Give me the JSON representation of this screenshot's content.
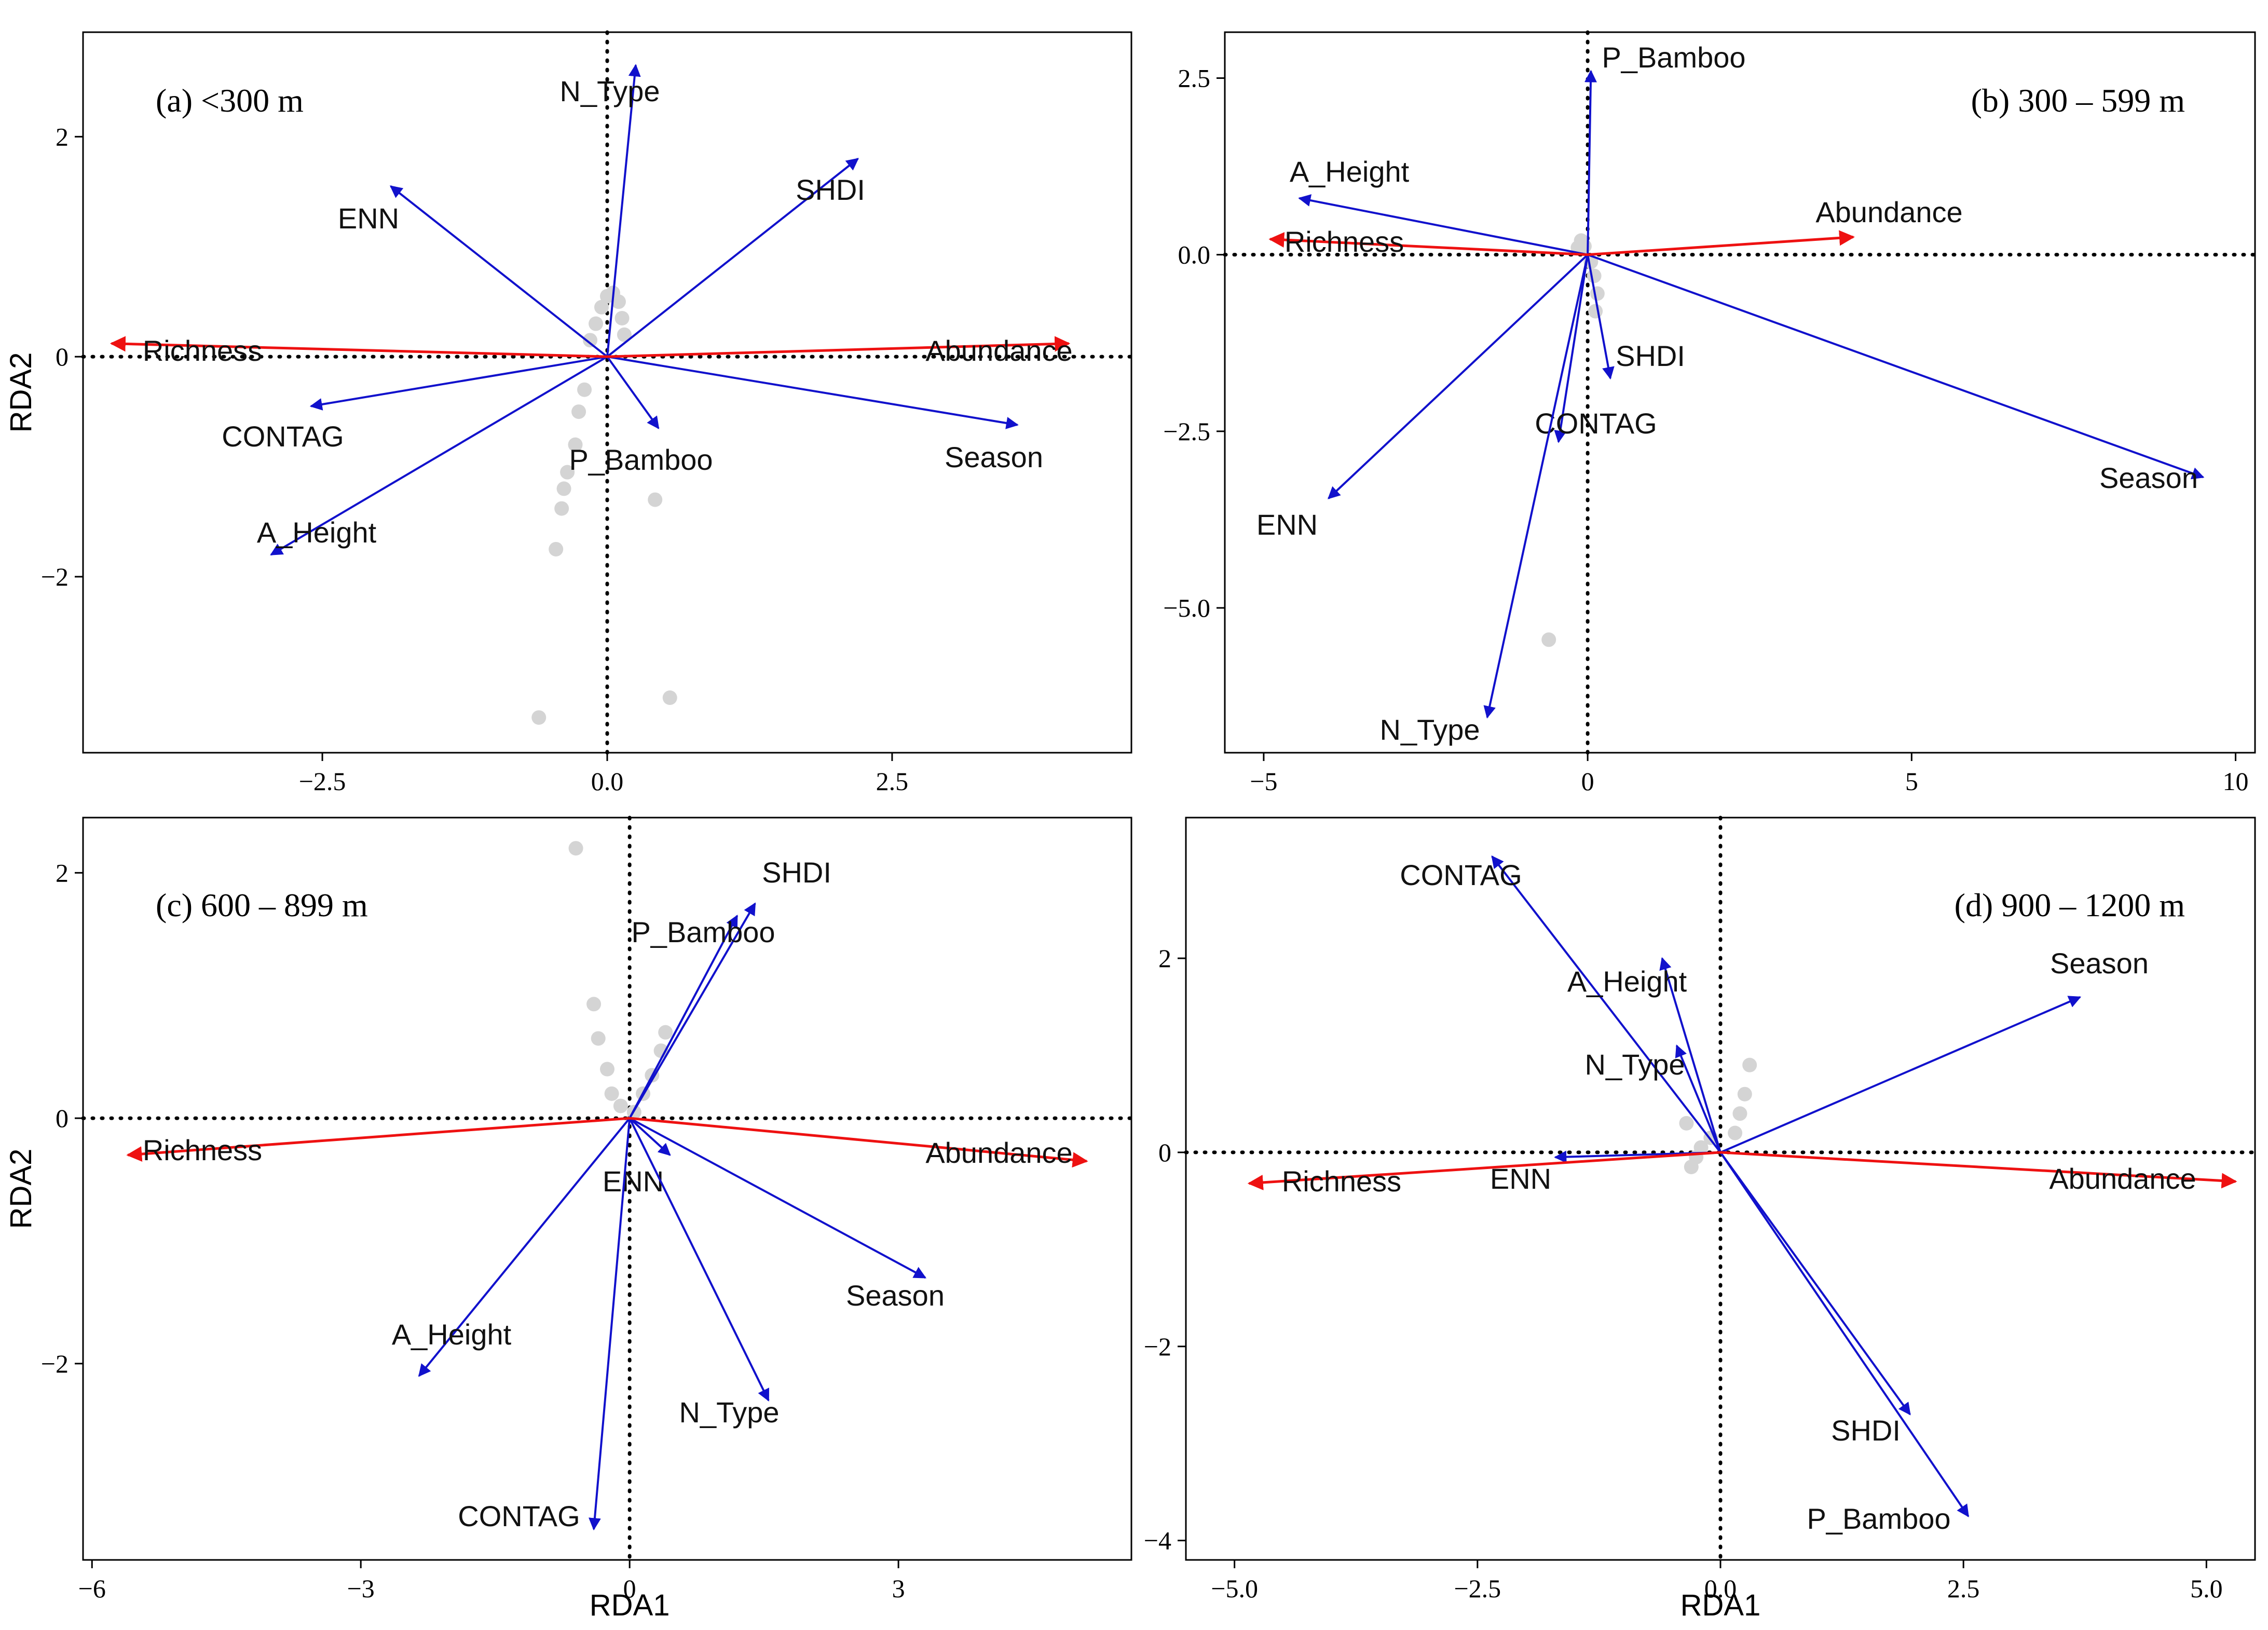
{
  "chart_data": [
    {
      "type": "scatter",
      "title": "(a) <300 m",
      "xlabel": "",
      "ylabel": "RDA2",
      "xlim": [
        -4.6,
        4.6
      ],
      "ylim": [
        -3.6,
        2.95
      ],
      "xticks": [
        -2.5,
        0,
        2.5
      ],
      "xtick_labels": [
        "−2.5",
        "0.0",
        "2.5"
      ],
      "yticks": [
        -2,
        0,
        2
      ],
      "ytick_labels": [
        "−2",
        "0",
        "2"
      ],
      "species": [
        {
          "name": "Richness",
          "x": -4.35,
          "y": 0.12
        },
        {
          "name": "Abundance",
          "x": 4.05,
          "y": 0.12
        }
      ],
      "variables": [
        {
          "name": "N_Type",
          "x": 0.25,
          "y": 2.65
        },
        {
          "name": "SHDI",
          "x": 2.2,
          "y": 1.8
        },
        {
          "name": "ENN",
          "x": -1.9,
          "y": 1.55
        },
        {
          "name": "CONTAG",
          "x": -2.6,
          "y": -0.45
        },
        {
          "name": "P_Bamboo",
          "x": 0.45,
          "y": -0.65
        },
        {
          "name": "Season",
          "x": 3.6,
          "y": -0.62
        },
        {
          "name": "A_Height",
          "x": -2.95,
          "y": -1.8
        }
      ],
      "sites": [
        {
          "x": -0.1,
          "y": 0.3
        },
        {
          "x": -0.05,
          "y": 0.45
        },
        {
          "x": 0.0,
          "y": 0.55
        },
        {
          "x": 0.05,
          "y": 0.58
        },
        {
          "x": 0.1,
          "y": 0.5
        },
        {
          "x": 0.13,
          "y": 0.35
        },
        {
          "x": 0.15,
          "y": 0.2
        },
        {
          "x": -0.15,
          "y": 0.15
        },
        {
          "x": -0.2,
          "y": -0.3
        },
        {
          "x": -0.25,
          "y": -0.5
        },
        {
          "x": -0.28,
          "y": -0.8
        },
        {
          "x": -0.35,
          "y": -1.05
        },
        {
          "x": -0.38,
          "y": -1.2
        },
        {
          "x": -0.4,
          "y": -1.38
        },
        {
          "x": -0.45,
          "y": -1.75
        },
        {
          "x": 0.42,
          "y": -1.3
        },
        {
          "x": -0.6,
          "y": -3.28
        },
        {
          "x": 0.55,
          "y": -3.1
        }
      ]
    },
    {
      "type": "scatter",
      "title": "(b) 300 – 599 m",
      "xlabel": "",
      "ylabel": "",
      "xlim": [
        -5.6,
        10.3
      ],
      "ylim": [
        -7.05,
        3.15
      ],
      "xticks": [
        -5,
        0,
        5,
        10
      ],
      "xtick_labels": [
        "−5",
        "0",
        "5",
        "10"
      ],
      "yticks": [
        2.5,
        0,
        -2.5,
        -5
      ],
      "ytick_labels": [
        "2.5",
        "0.0",
        "−2.5",
        "−5.0"
      ],
      "species": [
        {
          "name": "Richness",
          "x": -4.9,
          "y": 0.22
        },
        {
          "name": "Abundance",
          "x": 4.1,
          "y": 0.25
        }
      ],
      "variables": [
        {
          "name": "P_Bamboo",
          "x": 0.05,
          "y": 2.6
        },
        {
          "name": "A_Height",
          "x": -4.45,
          "y": 0.8
        },
        {
          "name": "SHDI",
          "x": 0.35,
          "y": -1.75
        },
        {
          "name": "CONTAG",
          "x": -0.45,
          "y": -2.65
        },
        {
          "name": "ENN",
          "x": -4.0,
          "y": -3.45
        },
        {
          "name": "Season",
          "x": 9.5,
          "y": -3.15
        },
        {
          "name": "N_Type",
          "x": -1.55,
          "y": -6.55
        }
      ],
      "sites": [
        {
          "x": -0.15,
          "y": 0.1
        },
        {
          "x": -0.1,
          "y": 0.2
        },
        {
          "x": -0.05,
          "y": 0.12
        },
        {
          "x": 0.05,
          "y": -0.1
        },
        {
          "x": 0.1,
          "y": -0.3
        },
        {
          "x": 0.15,
          "y": -0.55
        },
        {
          "x": 0.12,
          "y": -0.8
        },
        {
          "x": -0.6,
          "y": -5.45
        }
      ]
    },
    {
      "type": "scatter",
      "title": "(c) 600 – 899 m",
      "xlabel": "RDA1",
      "ylabel": "RDA2",
      "xlim": [
        -6.1,
        5.6
      ],
      "ylim": [
        -3.6,
        2.45
      ],
      "xticks": [
        -6,
        -3,
        0,
        3
      ],
      "xtick_labels": [
        "−6",
        "−3",
        "0",
        "3"
      ],
      "yticks": [
        2,
        0,
        -2
      ],
      "ytick_labels": [
        "2",
        "0",
        "−2"
      ],
      "species": [
        {
          "name": "Richness",
          "x": -5.6,
          "y": -0.3
        },
        {
          "name": "Abundance",
          "x": 5.1,
          "y": -0.35
        }
      ],
      "variables": [
        {
          "name": "SHDI",
          "x": 1.4,
          "y": 1.75
        },
        {
          "name": "P_Bamboo",
          "x": 1.2,
          "y": 1.65
        },
        {
          "name": "ENN",
          "x": 0.45,
          "y": -0.3
        },
        {
          "name": "Season",
          "x": 3.3,
          "y": -1.3
        },
        {
          "name": "A_Height",
          "x": -2.35,
          "y": -2.1
        },
        {
          "name": "N_Type",
          "x": 1.55,
          "y": -2.3
        },
        {
          "name": "CONTAG",
          "x": -0.4,
          "y": -3.35
        }
      ],
      "sites": [
        {
          "x": -0.6,
          "y": 2.2
        },
        {
          "x": -0.4,
          "y": 0.93
        },
        {
          "x": -0.35,
          "y": 0.65
        },
        {
          "x": -0.25,
          "y": 0.4
        },
        {
          "x": -0.2,
          "y": 0.2
        },
        {
          "x": -0.1,
          "y": 0.1
        },
        {
          "x": 0.05,
          "y": 0.05
        },
        {
          "x": 0.15,
          "y": 0.2
        },
        {
          "x": 0.25,
          "y": 0.35
        },
        {
          "x": 0.35,
          "y": 0.55
        },
        {
          "x": 0.4,
          "y": 0.7
        }
      ]
    },
    {
      "type": "scatter",
      "title": "(d) 900 – 1200 m",
      "xlabel": "RDA1",
      "ylabel": "",
      "xlim": [
        -5.5,
        5.5
      ],
      "ylim": [
        -4.2,
        3.45
      ],
      "xticks": [
        -5,
        -2.5,
        0,
        2.5,
        5
      ],
      "xtick_labels": [
        "−5.0",
        "−2.5",
        "0.0",
        "2.5",
        "5.0"
      ],
      "yticks": [
        2,
        0,
        -2,
        -4
      ],
      "ytick_labels": [
        "2",
        "0",
        "−2",
        "−4"
      ],
      "species": [
        {
          "name": "Richness",
          "x": -4.85,
          "y": -0.32
        },
        {
          "name": "Abundance",
          "x": 5.3,
          "y": -0.3
        }
      ],
      "variables": [
        {
          "name": "CONTAG",
          "x": -2.35,
          "y": 3.05
        },
        {
          "name": "A_Height",
          "x": -0.6,
          "y": 2.0
        },
        {
          "name": "N_Type",
          "x": -0.45,
          "y": 1.1
        },
        {
          "name": "Season",
          "x": 3.7,
          "y": 1.6
        },
        {
          "name": "ENN",
          "x": -1.7,
          "y": -0.05
        },
        {
          "name": "SHDI",
          "x": 1.95,
          "y": -2.7
        },
        {
          "name": "P_Bamboo",
          "x": 2.55,
          "y": -3.75
        }
      ],
      "sites": [
        {
          "x": 0.3,
          "y": 0.9
        },
        {
          "x": 0.25,
          "y": 0.6
        },
        {
          "x": 0.2,
          "y": 0.4
        },
        {
          "x": 0.15,
          "y": 0.2
        },
        {
          "x": -0.1,
          "y": 0.15
        },
        {
          "x": -0.2,
          "y": 0.05
        },
        {
          "x": -0.25,
          "y": -0.05
        },
        {
          "x": -0.3,
          "y": -0.15
        },
        {
          "x": -0.35,
          "y": 0.3
        }
      ]
    }
  ],
  "colors": {
    "species_arrow": "#ee1111",
    "variable_arrow": "#1111cc",
    "site_point": "#d4d4d4",
    "axis": "#000000"
  }
}
